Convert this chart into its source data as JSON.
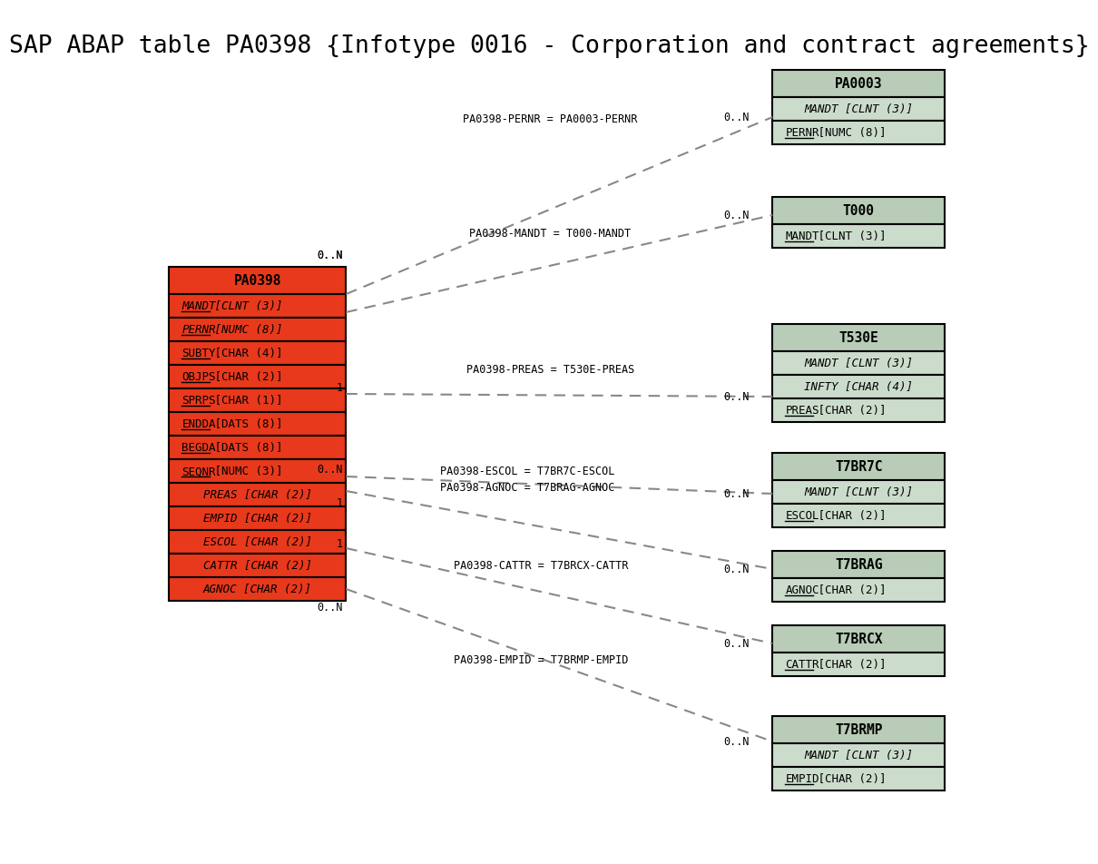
{
  "title": "SAP ABAP table PA0398 {Infotype 0016 - Corporation and contract agreements}",
  "background_color": "#ffffff",
  "main_table": {
    "name": "PA0398",
    "header_color": "#e8391c",
    "row_color": "#e8391c",
    "border_color": "#000000",
    "text_color": "#000000",
    "fields": [
      {
        "text": "MANDT [CLNT (3)]",
        "italic": true,
        "underline": true
      },
      {
        "text": "PERNR [NUMC (8)]",
        "italic": true,
        "underline": true
      },
      {
        "text": "SUBTY [CHAR (4)]",
        "italic": false,
        "underline": true
      },
      {
        "text": "OBJPS [CHAR (2)]",
        "italic": false,
        "underline": true
      },
      {
        "text": "SPRPS [CHAR (1)]",
        "italic": false,
        "underline": true
      },
      {
        "text": "ENDDA [DATS (8)]",
        "italic": false,
        "underline": true
      },
      {
        "text": "BEGDA [DATS (8)]",
        "italic": false,
        "underline": true
      },
      {
        "text": "SEQNR [NUMC (3)]",
        "italic": false,
        "underline": true
      },
      {
        "text": "PREAS [CHAR (2)]",
        "italic": true,
        "underline": false
      },
      {
        "text": "EMPID [CHAR (2)]",
        "italic": true,
        "underline": false
      },
      {
        "text": "ESCOL [CHAR (2)]",
        "italic": true,
        "underline": false
      },
      {
        "text": "CATTR [CHAR (2)]",
        "italic": true,
        "underline": false
      },
      {
        "text": "AGNOC [CHAR (2)]",
        "italic": true,
        "underline": false
      }
    ]
  },
  "related_tables": [
    {
      "name": "PA0003",
      "header_color": "#b8ccb8",
      "row_color": "#ccdccc",
      "border_color": "#000000",
      "fields": [
        {
          "text": "MANDT [CLNT (3)]",
          "italic": true,
          "underline": false
        },
        {
          "text": "PERNR [NUMC (8)]",
          "italic": false,
          "underline": true
        }
      ]
    },
    {
      "name": "T000",
      "header_color": "#b8ccb8",
      "row_color": "#ccdccc",
      "border_color": "#000000",
      "fields": [
        {
          "text": "MANDT [CLNT (3)]",
          "italic": false,
          "underline": true
        }
      ]
    },
    {
      "name": "T530E",
      "header_color": "#b8ccb8",
      "row_color": "#ccdccc",
      "border_color": "#000000",
      "fields": [
        {
          "text": "MANDT [CLNT (3)]",
          "italic": true,
          "underline": false
        },
        {
          "text": "INFTY [CHAR (4)]",
          "italic": true,
          "underline": false
        },
        {
          "text": "PREAS [CHAR (2)]",
          "italic": false,
          "underline": true
        }
      ]
    },
    {
      "name": "T7BR7C",
      "header_color": "#b8ccb8",
      "row_color": "#ccdccc",
      "border_color": "#000000",
      "fields": [
        {
          "text": "MANDT [CLNT (3)]",
          "italic": true,
          "underline": false
        },
        {
          "text": "ESCOL [CHAR (2)]",
          "italic": false,
          "underline": true
        }
      ]
    },
    {
      "name": "T7BRAG",
      "header_color": "#b8ccb8",
      "row_color": "#ccdccc",
      "border_color": "#000000",
      "fields": [
        {
          "text": "AGNOC [CHAR (2)]",
          "italic": false,
          "underline": true
        }
      ]
    },
    {
      "name": "T7BRCX",
      "header_color": "#b8ccb8",
      "row_color": "#ccdccc",
      "border_color": "#000000",
      "fields": [
        {
          "text": "CATTR [CHAR (2)]",
          "italic": false,
          "underline": true
        }
      ]
    },
    {
      "name": "T7BRMP",
      "header_color": "#b8ccb8",
      "row_color": "#ccdccc",
      "border_color": "#000000",
      "fields": [
        {
          "text": "MANDT [CLNT (3)]",
          "italic": true,
          "underline": false
        },
        {
          "text": "EMPID [CHAR (2)]",
          "italic": false,
          "underline": true
        }
      ]
    }
  ]
}
